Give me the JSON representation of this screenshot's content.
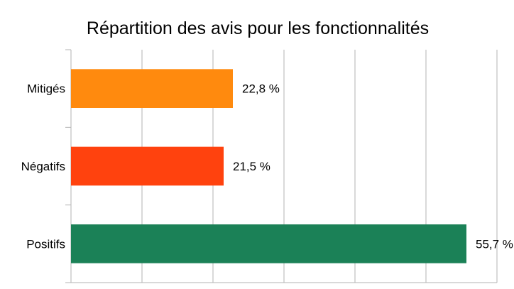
{
  "chart_data": {
    "type": "bar",
    "orientation": "horizontal",
    "title": "Répartition des avis pour les fonctionnalités",
    "categories": [
      "Mitigés",
      "Négatifs",
      "Positifs"
    ],
    "values": [
      22.8,
      21.5,
      55.7
    ],
    "data_labels": [
      "22,8 %",
      "21,5 %",
      "55,7 %"
    ],
    "colors": [
      "#ff8a0e",
      "#ff420e",
      "#1b8157"
    ],
    "xlim": [
      0,
      60
    ],
    "x_tick_step": 10,
    "x_tick_labels_shown": false,
    "grid": true,
    "legend": "none",
    "xlabel": "",
    "ylabel": ""
  }
}
